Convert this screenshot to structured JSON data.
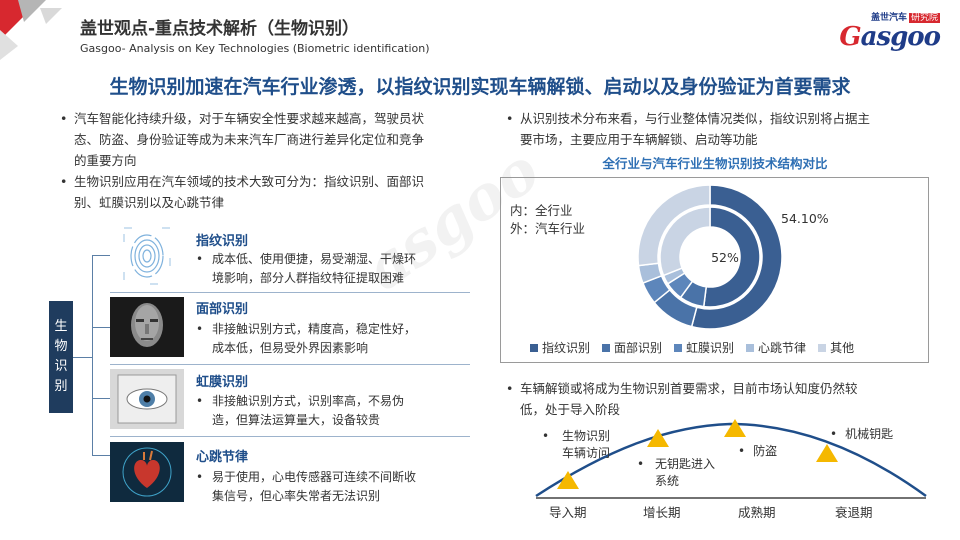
{
  "header": {
    "title_cn": "盖世观点-重点技术解析（生物识别）",
    "title_en": "Gasgoo- Analysis on Key Technologies  (Biometric identification)",
    "logo_top_1": "盖世汽车",
    "logo_top_2": "研究院",
    "logo_main_g": "G",
    "logo_main_rest": "asgoo"
  },
  "headline": "生物识别加速在汽车行业渗透，以指纹识别实现车辆解锁、启动以及身份验证为首要需求",
  "left": {
    "bullets": [
      [
        "汽车智能化持续升级，对于车辆安全性要求越来越高，驾驶员状",
        "态、防盗、身份验证等成为未来汽车厂商进行差异化定位和竞争",
        "的重要方向"
      ],
      [
        "生物识别应用在汽车领域的技术大致可分为：指纹识别、面部识",
        "别、虹膜识别以及心跳节律"
      ]
    ],
    "tree_label": [
      "生",
      "物",
      "识",
      "别"
    ],
    "techs": [
      {
        "title": "指纹识别",
        "desc": [
          "成本低、使用便捷，易受潮湿、干燥环",
          "境影响，部分人群指纹特征提取困难"
        ]
      },
      {
        "title": "面部识别",
        "desc": [
          "非接触识别方式，精度高，稳定性好，",
          "成本低，但易受外界因素影响"
        ]
      },
      {
        "title": "虹膜识别",
        "desc": [
          "非接触识别方式，识别率高，不易伪",
          "造，但算法运算量大，设备较贵"
        ]
      },
      {
        "title": "心跳节律",
        "desc": [
          "易于使用，心电传感器可连续不间断收",
          "集信号，但心率失常者无法识别"
        ]
      }
    ]
  },
  "right": {
    "bullet1": [
      "从识别技术分布来看，与行业整体情况类似，指纹识别将占据主",
      "要市场，主要应用于车辆解锁、启动等功能"
    ],
    "bullet2": [
      "车辆解锁或将成为生物识别首要需求，目前市场认知度仍然较",
      "低，处于导入阶段"
    ],
    "inner_label": [
      "内：全行业",
      "外：汽车行业"
    ],
    "lifecycle": {
      "items": [
        {
          "lines": [
            "生物识别",
            "车辆访问"
          ]
        },
        {
          "lines": [
            "无钥匙进入",
            "系统"
          ]
        },
        {
          "lines": [
            "防盗"
          ]
        },
        {
          "lines": [
            "机械钥匙"
          ]
        }
      ],
      "stages": [
        "导入期",
        "增长期",
        "成熟期",
        "衰退期"
      ]
    }
  },
  "chart_data": {
    "type": "pie",
    "title": "全行业与汽车行业生物识别技术结构对比",
    "categories": [
      "指纹识别",
      "面部识别",
      "虹膜识别",
      "心跳节律",
      "其他"
    ],
    "series": [
      {
        "name": "内：全行业",
        "values": [
          52,
          8,
          6,
          3,
          31
        ],
        "center_label": "52%"
      },
      {
        "name": "外：汽车行业",
        "values": [
          54.1,
          10,
          5,
          4,
          26.9
        ],
        "label": "54.10%"
      }
    ],
    "colors": [
      "#3a5f92",
      "#4a73a8",
      "#5d86bb",
      "#a9bfdb",
      "#c9d4e4"
    ],
    "legend": "bottom"
  },
  "colors": {
    "accent": "#1f4e8a",
    "chart_title": "#2e6fb4",
    "triangle": "#f5b800"
  }
}
